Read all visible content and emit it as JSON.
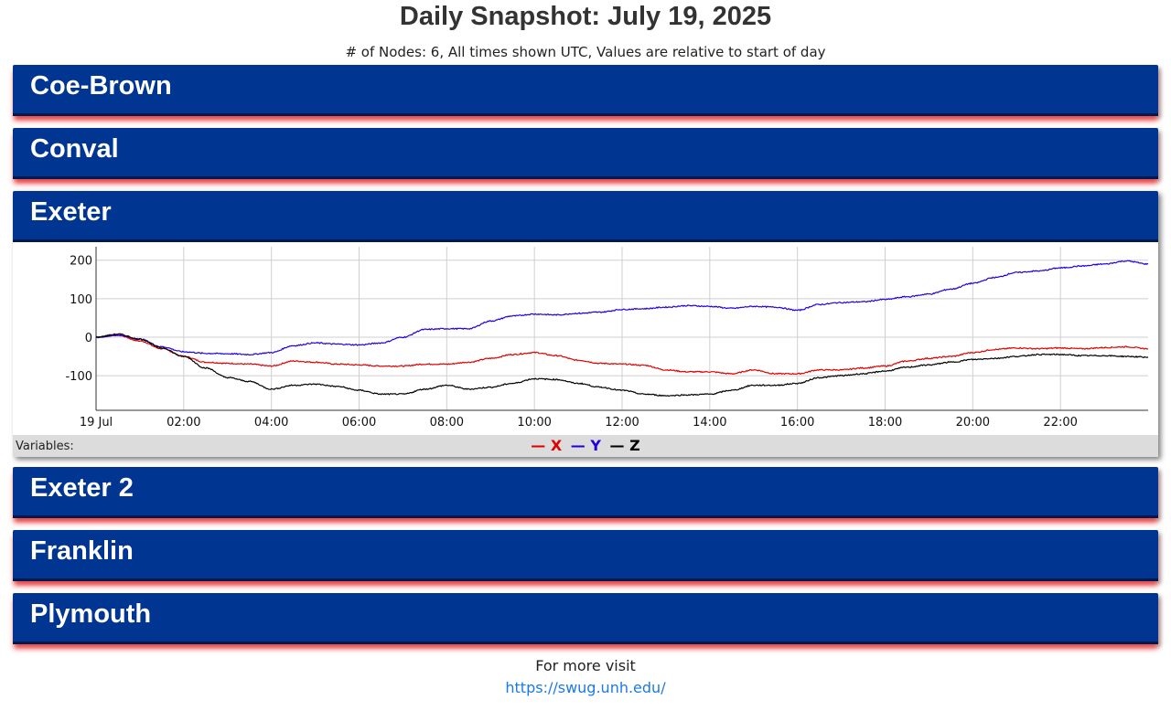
{
  "header": {
    "title": "Daily Snapshot: July 19, 2025",
    "subtitle": "# of Nodes: 6, All times shown UTC, Values are relative to start of day"
  },
  "nodes": [
    {
      "name": "Coe-Brown",
      "expanded": false
    },
    {
      "name": "Conval",
      "expanded": false
    },
    {
      "name": "Exeter",
      "expanded": true
    },
    {
      "name": "Exeter 2",
      "expanded": false
    },
    {
      "name": "Franklin",
      "expanded": false
    },
    {
      "name": "Plymouth",
      "expanded": false
    }
  ],
  "legend": {
    "label": "Variables:",
    "items": [
      {
        "name": "X",
        "color": "#e00000"
      },
      {
        "name": "Y",
        "color": "#2200dd"
      },
      {
        "name": "Z",
        "color": "#000000"
      }
    ]
  },
  "chart_data": {
    "type": "line",
    "xlabel": "",
    "ylabel": "",
    "x_tick_labels": [
      "19 Jul",
      "02:00",
      "04:00",
      "06:00",
      "08:00",
      "10:00",
      "12:00",
      "14:00",
      "16:00",
      "18:00",
      "20:00",
      "22:00"
    ],
    "y_ticks": [
      -100,
      0,
      100,
      200
    ],
    "ylim": [
      -190,
      235
    ],
    "xlim": [
      0,
      24
    ],
    "grid": true,
    "x": [
      0,
      0.5,
      1,
      1.5,
      2,
      2.5,
      3,
      3.5,
      4,
      4.5,
      5,
      5.5,
      6,
      6.5,
      7,
      7.5,
      8,
      8.5,
      9,
      9.5,
      10,
      10.5,
      11,
      11.5,
      12,
      12.5,
      13,
      13.5,
      14,
      14.5,
      15,
      15.5,
      16,
      16.5,
      17,
      17.5,
      18,
      18.5,
      19,
      19.5,
      20,
      20.5,
      21,
      21.5,
      22,
      22.5,
      23,
      23.5,
      24
    ],
    "series": [
      {
        "name": "X",
        "color": "#e00000",
        "values": [
          0,
          5,
          -10,
          -30,
          -50,
          -65,
          -68,
          -70,
          -75,
          -62,
          -65,
          -70,
          -72,
          -75,
          -75,
          -70,
          -70,
          -65,
          -55,
          -45,
          -40,
          -48,
          -60,
          -68,
          -70,
          -73,
          -85,
          -90,
          -90,
          -95,
          -85,
          -95,
          -95,
          -85,
          -85,
          -80,
          -75,
          -62,
          -55,
          -50,
          -40,
          -32,
          -28,
          -30,
          -28,
          -30,
          -27,
          -25,
          -30
        ]
      },
      {
        "name": "Y",
        "color": "#2200dd",
        "values": [
          0,
          5,
          -5,
          -25,
          -38,
          -42,
          -43,
          -45,
          -40,
          -22,
          -15,
          -18,
          -20,
          -15,
          0,
          20,
          22,
          22,
          42,
          55,
          60,
          58,
          62,
          65,
          72,
          74,
          78,
          82,
          80,
          75,
          80,
          78,
          70,
          85,
          90,
          92,
          98,
          105,
          112,
          125,
          140,
          155,
          168,
          172,
          180,
          185,
          190,
          198,
          190
        ]
      },
      {
        "name": "Z",
        "color": "#000000",
        "values": [
          0,
          8,
          -5,
          -28,
          -50,
          -80,
          -105,
          -115,
          -135,
          -125,
          -122,
          -128,
          -138,
          -148,
          -148,
          -135,
          -125,
          -135,
          -130,
          -120,
          -108,
          -110,
          -120,
          -130,
          -138,
          -148,
          -152,
          -150,
          -148,
          -138,
          -125,
          -125,
          -120,
          -105,
          -100,
          -95,
          -88,
          -78,
          -72,
          -65,
          -58,
          -55,
          -50,
          -45,
          -45,
          -48,
          -48,
          -50,
          -52
        ]
      }
    ]
  },
  "footer": {
    "text": "For more visit",
    "link": "https://swug.unh.edu/"
  }
}
